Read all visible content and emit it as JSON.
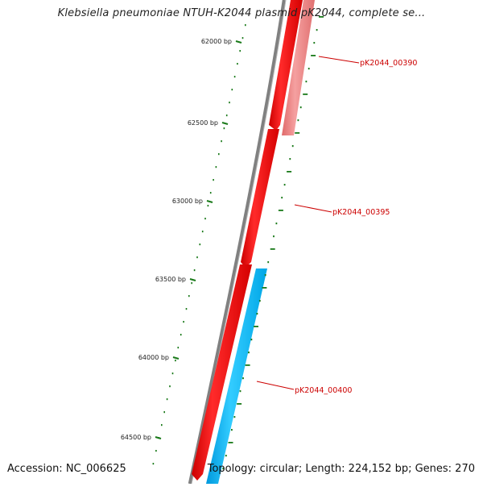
{
  "title": "Klebsiella pneumoniae NTUH-K2044 plasmid pK2044, complete se...",
  "accession": "Accession: NC_006625",
  "topology": "Topology: circular; Length: 224,152 bp; Genes: 270",
  "ticks": [
    {
      "label": "62000 bp",
      "bp": 62000
    },
    {
      "label": "62500 bp",
      "bp": 62500
    },
    {
      "label": "63000 bp",
      "bp": 63000
    },
    {
      "label": "63500 bp",
      "bp": 63500
    },
    {
      "label": "64000 bp",
      "bp": 64000
    },
    {
      "label": "64500 bp",
      "bp": 64500
    }
  ],
  "genes": [
    {
      "name": "pK2044_00390",
      "strand": "reverse",
      "color": "#ff0000",
      "label_color": "#cc0000"
    },
    {
      "name": "pK2044_00395",
      "strand": "reverse",
      "color": "#ff0000",
      "label_color": "#cc0000"
    },
    {
      "name": "pK2044_00400",
      "strand": "reverse",
      "color": "#ff0000",
      "label_color": "#cc0000"
    }
  ],
  "features": [
    {
      "name": "light-red-feature",
      "color": "#f08080"
    },
    {
      "name": "cyan-feature",
      "color": "#00bfff"
    }
  ],
  "colors": {
    "backbone": "#777777",
    "tick": "#1a7a1a",
    "gc_dots": "#1a7a1a"
  }
}
